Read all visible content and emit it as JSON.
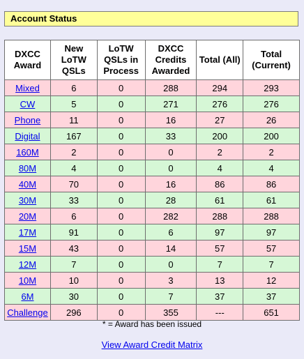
{
  "header": {
    "title": "Account Status"
  },
  "table": {
    "columns": [
      "DXCC Award",
      "New LoTW QSLs",
      "LoTW QSLs in Process",
      "DXCC Credits Awarded",
      "Total (All)",
      "Total (Current)"
    ],
    "rows": [
      {
        "award": "Mixed",
        "cells": [
          "6",
          "0",
          "288",
          "294",
          "293"
        ],
        "shade": "pink"
      },
      {
        "award": "CW",
        "cells": [
          "5",
          "0",
          "271",
          "276",
          "276"
        ],
        "shade": "green"
      },
      {
        "award": "Phone",
        "cells": [
          "11",
          "0",
          "16",
          "27",
          "26"
        ],
        "shade": "pink"
      },
      {
        "award": "Digital",
        "cells": [
          "167",
          "0",
          "33",
          "200",
          "200"
        ],
        "shade": "green"
      },
      {
        "award": "160M",
        "cells": [
          "2",
          "0",
          "0",
          "2",
          "2"
        ],
        "shade": "pink"
      },
      {
        "award": "80M",
        "cells": [
          "4",
          "0",
          "0",
          "4",
          "4"
        ],
        "shade": "green"
      },
      {
        "award": "40M",
        "cells": [
          "70",
          "0",
          "16",
          "86",
          "86"
        ],
        "shade": "pink"
      },
      {
        "award": "30M",
        "cells": [
          "33",
          "0",
          "28",
          "61",
          "61"
        ],
        "shade": "green"
      },
      {
        "award": "20M",
        "cells": [
          "6",
          "0",
          "282",
          "288",
          "288"
        ],
        "shade": "pink"
      },
      {
        "award": "17M",
        "cells": [
          "91",
          "0",
          "6",
          "97",
          "97"
        ],
        "shade": "green"
      },
      {
        "award": "15M",
        "cells": [
          "43",
          "0",
          "14",
          "57",
          "57"
        ],
        "shade": "pink"
      },
      {
        "award": "12M",
        "cells": [
          "7",
          "0",
          "0",
          "7",
          "7"
        ],
        "shade": "green"
      },
      {
        "award": "10M",
        "cells": [
          "10",
          "0",
          "3",
          "13",
          "12"
        ],
        "shade": "pink"
      },
      {
        "award": "6M",
        "cells": [
          "30",
          "0",
          "7",
          "37",
          "37"
        ],
        "shade": "green"
      },
      {
        "award": "Challenge",
        "cells": [
          "296",
          "0",
          "355",
          "---",
          "651"
        ],
        "shade": "pink"
      }
    ]
  },
  "footnote": "* = Award has been issued",
  "matrix_link": "View Award Credit Matrix",
  "colors": {
    "page_bg": "#eaeaf8",
    "header_bg": "#ffff99",
    "row_pink": "#ffd5dc",
    "row_green": "#d6f7d6",
    "link": "#0000ee"
  }
}
